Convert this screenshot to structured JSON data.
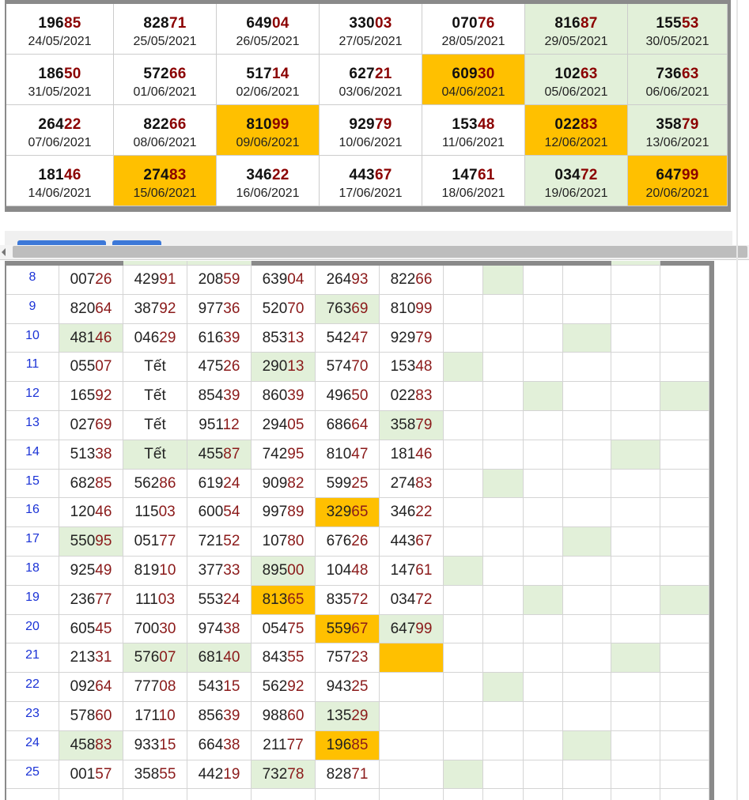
{
  "calendar": {
    "rows": [
      [
        {
          "head": "196",
          "tail": "85",
          "date": "24/05/2021",
          "hl": ""
        },
        {
          "head": "828",
          "tail": "71",
          "date": "25/05/2021",
          "hl": ""
        },
        {
          "head": "649",
          "tail": "04",
          "date": "26/05/2021",
          "hl": ""
        },
        {
          "head": "330",
          "tail": "03",
          "date": "27/05/2021",
          "hl": ""
        },
        {
          "head": "070",
          "tail": "76",
          "date": "28/05/2021",
          "hl": ""
        },
        {
          "head": "816",
          "tail": "87",
          "date": "29/05/2021",
          "hl": "green"
        },
        {
          "head": "155",
          "tail": "53",
          "date": "30/05/2021",
          "hl": "green"
        }
      ],
      [
        {
          "head": "186",
          "tail": "50",
          "date": "31/05/2021",
          "hl": ""
        },
        {
          "head": "572",
          "tail": "66",
          "date": "01/06/2021",
          "hl": ""
        },
        {
          "head": "517",
          "tail": "14",
          "date": "02/06/2021",
          "hl": ""
        },
        {
          "head": "627",
          "tail": "21",
          "date": "03/06/2021",
          "hl": ""
        },
        {
          "head": "609",
          "tail": "30",
          "date": "04/06/2021",
          "hl": "orange"
        },
        {
          "head": "102",
          "tail": "63",
          "date": "05/06/2021",
          "hl": "green"
        },
        {
          "head": "736",
          "tail": "63",
          "date": "06/06/2021",
          "hl": "green"
        }
      ],
      [
        {
          "head": "264",
          "tail": "22",
          "date": "07/06/2021",
          "hl": ""
        },
        {
          "head": "822",
          "tail": "66",
          "date": "08/06/2021",
          "hl": ""
        },
        {
          "head": "810",
          "tail": "99",
          "date": "09/06/2021",
          "hl": "orange"
        },
        {
          "head": "929",
          "tail": "79",
          "date": "10/06/2021",
          "hl": ""
        },
        {
          "head": "153",
          "tail": "48",
          "date": "11/06/2021",
          "hl": ""
        },
        {
          "head": "022",
          "tail": "83",
          "date": "12/06/2021",
          "hl": "orange"
        },
        {
          "head": "358",
          "tail": "79",
          "date": "13/06/2021",
          "hl": "green"
        }
      ],
      [
        {
          "head": "181",
          "tail": "46",
          "date": "14/06/2021",
          "hl": ""
        },
        {
          "head": "274",
          "tail": "83",
          "date": "15/06/2021",
          "hl": "orange"
        },
        {
          "head": "346",
          "tail": "22",
          "date": "16/06/2021",
          "hl": ""
        },
        {
          "head": "443",
          "tail": "67",
          "date": "17/06/2021",
          "hl": ""
        },
        {
          "head": "147",
          "tail": "61",
          "date": "18/06/2021",
          "hl": ""
        },
        {
          "head": "034",
          "tail": "72",
          "date": "19/06/2021",
          "hl": "green"
        },
        {
          "head": "647",
          "tail": "99",
          "date": "20/06/2021",
          "hl": "orange"
        }
      ]
    ]
  },
  "results_table": {
    "rows": [
      {
        "idx": "8",
        "cells": [
          {
            "h": "007",
            "t": "26",
            "hl": ""
          },
          {
            "h": "429",
            "t": "91",
            "hl": ""
          },
          {
            "h": "208",
            "t": "59",
            "hl": ""
          },
          {
            "h": "639",
            "t": "04",
            "hl": ""
          },
          {
            "h": "264",
            "t": "93",
            "hl": ""
          },
          {
            "h": "822",
            "t": "66",
            "hl": ""
          }
        ],
        "marks": [
          "",
          "green",
          "",
          "",
          "",
          "",
          ""
        ]
      },
      {
        "idx": "9",
        "cells": [
          {
            "h": "820",
            "t": "64",
            "hl": ""
          },
          {
            "h": "387",
            "t": "92",
            "hl": ""
          },
          {
            "h": "977",
            "t": "36",
            "hl": ""
          },
          {
            "h": "520",
            "t": "70",
            "hl": ""
          },
          {
            "h": "763",
            "t": "69",
            "hl": "green"
          },
          {
            "h": "810",
            "t": "99",
            "hl": ""
          }
        ],
        "marks": [
          "",
          "",
          "",
          "",
          "",
          "",
          ""
        ]
      },
      {
        "idx": "10",
        "cells": [
          {
            "h": "481",
            "t": "46",
            "hl": "green"
          },
          {
            "h": "046",
            "t": "29",
            "hl": ""
          },
          {
            "h": "616",
            "t": "39",
            "hl": ""
          },
          {
            "h": "853",
            "t": "13",
            "hl": ""
          },
          {
            "h": "542",
            "t": "47",
            "hl": ""
          },
          {
            "h": "929",
            "t": "79",
            "hl": ""
          }
        ],
        "marks": [
          "",
          "",
          "",
          "green",
          "",
          "",
          ""
        ]
      },
      {
        "idx": "11",
        "cells": [
          {
            "h": "055",
            "t": "07",
            "hl": ""
          },
          {
            "h": "Tết",
            "t": "",
            "hl": ""
          },
          {
            "h": "475",
            "t": "26",
            "hl": ""
          },
          {
            "h": "290",
            "t": "13",
            "hl": "green"
          },
          {
            "h": "574",
            "t": "70",
            "hl": ""
          },
          {
            "h": "153",
            "t": "48",
            "hl": ""
          }
        ],
        "marks": [
          "green",
          "",
          "",
          "",
          "",
          "",
          ""
        ]
      },
      {
        "idx": "12",
        "cells": [
          {
            "h": "165",
            "t": "92",
            "hl": ""
          },
          {
            "h": "Tết",
            "t": "",
            "hl": ""
          },
          {
            "h": "854",
            "t": "39",
            "hl": ""
          },
          {
            "h": "860",
            "t": "39",
            "hl": ""
          },
          {
            "h": "496",
            "t": "50",
            "hl": ""
          },
          {
            "h": "022",
            "t": "83",
            "hl": ""
          }
        ],
        "marks": [
          "",
          "",
          "green",
          "",
          "",
          "green",
          ""
        ]
      },
      {
        "idx": "13",
        "cells": [
          {
            "h": "027",
            "t": "69",
            "hl": ""
          },
          {
            "h": "Tết",
            "t": "",
            "hl": ""
          },
          {
            "h": "951",
            "t": "12",
            "hl": ""
          },
          {
            "h": "294",
            "t": "05",
            "hl": ""
          },
          {
            "h": "686",
            "t": "64",
            "hl": ""
          },
          {
            "h": "358",
            "t": "79",
            "hl": "green"
          }
        ],
        "marks": [
          "",
          "",
          "",
          "",
          "",
          "",
          ""
        ]
      },
      {
        "idx": "14",
        "cells": [
          {
            "h": "513",
            "t": "38",
            "hl": ""
          },
          {
            "h": "Tết",
            "t": "",
            "hl": "green"
          },
          {
            "h": "455",
            "t": "87",
            "hl": "green"
          },
          {
            "h": "742",
            "t": "95",
            "hl": ""
          },
          {
            "h": "810",
            "t": "47",
            "hl": ""
          },
          {
            "h": "181",
            "t": "46",
            "hl": ""
          }
        ],
        "marks": [
          "",
          "",
          "",
          "",
          "green",
          "",
          ""
        ]
      },
      {
        "idx": "15",
        "cells": [
          {
            "h": "682",
            "t": "85",
            "hl": ""
          },
          {
            "h": "562",
            "t": "86",
            "hl": ""
          },
          {
            "h": "619",
            "t": "24",
            "hl": ""
          },
          {
            "h": "909",
            "t": "82",
            "hl": ""
          },
          {
            "h": "599",
            "t": "25",
            "hl": ""
          },
          {
            "h": "274",
            "t": "83",
            "hl": ""
          }
        ],
        "marks": [
          "",
          "green",
          "",
          "",
          "",
          "",
          ""
        ]
      },
      {
        "idx": "16",
        "cells": [
          {
            "h": "120",
            "t": "46",
            "hl": ""
          },
          {
            "h": "115",
            "t": "03",
            "hl": ""
          },
          {
            "h": "600",
            "t": "54",
            "hl": ""
          },
          {
            "h": "997",
            "t": "89",
            "hl": ""
          },
          {
            "h": "329",
            "t": "65",
            "hl": "orange"
          },
          {
            "h": "346",
            "t": "22",
            "hl": ""
          }
        ],
        "marks": [
          "",
          "",
          "",
          "",
          "",
          "",
          ""
        ]
      },
      {
        "idx": "17",
        "cells": [
          {
            "h": "550",
            "t": "95",
            "hl": "green"
          },
          {
            "h": "051",
            "t": "77",
            "hl": ""
          },
          {
            "h": "721",
            "t": "52",
            "hl": ""
          },
          {
            "h": "107",
            "t": "80",
            "hl": ""
          },
          {
            "h": "676",
            "t": "26",
            "hl": ""
          },
          {
            "h": "443",
            "t": "67",
            "hl": ""
          }
        ],
        "marks": [
          "",
          "",
          "",
          "green",
          "",
          "",
          ""
        ]
      },
      {
        "idx": "18",
        "cells": [
          {
            "h": "925",
            "t": "49",
            "hl": ""
          },
          {
            "h": "819",
            "t": "10",
            "hl": ""
          },
          {
            "h": "377",
            "t": "33",
            "hl": ""
          },
          {
            "h": "895",
            "t": "00",
            "hl": "green"
          },
          {
            "h": "104",
            "t": "48",
            "hl": ""
          },
          {
            "h": "147",
            "t": "61",
            "hl": ""
          }
        ],
        "marks": [
          "green",
          "",
          "",
          "",
          "",
          "",
          ""
        ]
      },
      {
        "idx": "19",
        "cells": [
          {
            "h": "236",
            "t": "77",
            "hl": ""
          },
          {
            "h": "111",
            "t": "03",
            "hl": ""
          },
          {
            "h": "553",
            "t": "24",
            "hl": ""
          },
          {
            "h": "813",
            "t": "65",
            "hl": "orange"
          },
          {
            "h": "835",
            "t": "72",
            "hl": ""
          },
          {
            "h": "034",
            "t": "72",
            "hl": ""
          }
        ],
        "marks": [
          "",
          "",
          "green",
          "",
          "",
          "green",
          ""
        ]
      },
      {
        "idx": "20",
        "cells": [
          {
            "h": "605",
            "t": "45",
            "hl": ""
          },
          {
            "h": "700",
            "t": "30",
            "hl": ""
          },
          {
            "h": "974",
            "t": "38",
            "hl": ""
          },
          {
            "h": "054",
            "t": "75",
            "hl": ""
          },
          {
            "h": "559",
            "t": "67",
            "hl": "orange"
          },
          {
            "h": "647",
            "t": "99",
            "hl": "green"
          }
        ],
        "marks": [
          "",
          "",
          "",
          "",
          "",
          "",
          ""
        ]
      },
      {
        "idx": "21",
        "cells": [
          {
            "h": "213",
            "t": "31",
            "hl": ""
          },
          {
            "h": "576",
            "t": "07",
            "hl": "green"
          },
          {
            "h": "681",
            "t": "40",
            "hl": "green"
          },
          {
            "h": "843",
            "t": "55",
            "hl": ""
          },
          {
            "h": "757",
            "t": "23",
            "hl": ""
          },
          {
            "h": "",
            "t": "",
            "hl": "orange"
          }
        ],
        "marks": [
          "",
          "",
          "",
          "",
          "green",
          "",
          ""
        ]
      },
      {
        "idx": "22",
        "cells": [
          {
            "h": "092",
            "t": "64",
            "hl": ""
          },
          {
            "h": "777",
            "t": "08",
            "hl": ""
          },
          {
            "h": "543",
            "t": "15",
            "hl": ""
          },
          {
            "h": "562",
            "t": "92",
            "hl": ""
          },
          {
            "h": "943",
            "t": "25",
            "hl": ""
          },
          {
            "h": "",
            "t": "",
            "hl": ""
          }
        ],
        "marks": [
          "",
          "green",
          "",
          "",
          "",
          "",
          ""
        ]
      },
      {
        "idx": "23",
        "cells": [
          {
            "h": "578",
            "t": "60",
            "hl": ""
          },
          {
            "h": "171",
            "t": "10",
            "hl": ""
          },
          {
            "h": "856",
            "t": "39",
            "hl": ""
          },
          {
            "h": "988",
            "t": "60",
            "hl": ""
          },
          {
            "h": "135",
            "t": "29",
            "hl": "green"
          },
          {
            "h": "",
            "t": "",
            "hl": ""
          }
        ],
        "marks": [
          "",
          "",
          "",
          "",
          "",
          "",
          ""
        ]
      },
      {
        "idx": "24",
        "cells": [
          {
            "h": "458",
            "t": "83",
            "hl": "green"
          },
          {
            "h": "933",
            "t": "15",
            "hl": ""
          },
          {
            "h": "664",
            "t": "38",
            "hl": ""
          },
          {
            "h": "211",
            "t": "77",
            "hl": ""
          },
          {
            "h": "196",
            "t": "85",
            "hl": "orange"
          },
          {
            "h": "",
            "t": "",
            "hl": ""
          }
        ],
        "marks": [
          "",
          "",
          "",
          "green",
          "",
          "",
          ""
        ]
      },
      {
        "idx": "25",
        "cells": [
          {
            "h": "001",
            "t": "57",
            "hl": ""
          },
          {
            "h": "358",
            "t": "55",
            "hl": ""
          },
          {
            "h": "442",
            "t": "19",
            "hl": ""
          },
          {
            "h": "732",
            "t": "78",
            "hl": "green"
          },
          {
            "h": "828",
            "t": "71",
            "hl": ""
          },
          {
            "h": "",
            "t": "",
            "hl": ""
          }
        ],
        "marks": [
          "green",
          "",
          "",
          "",
          "",
          "",
          ""
        ]
      }
    ]
  },
  "colors": {
    "orange": "#ffc000",
    "green": "#e2f0d9",
    "tail": "#8b1a1a",
    "index": "#1a32d6"
  }
}
